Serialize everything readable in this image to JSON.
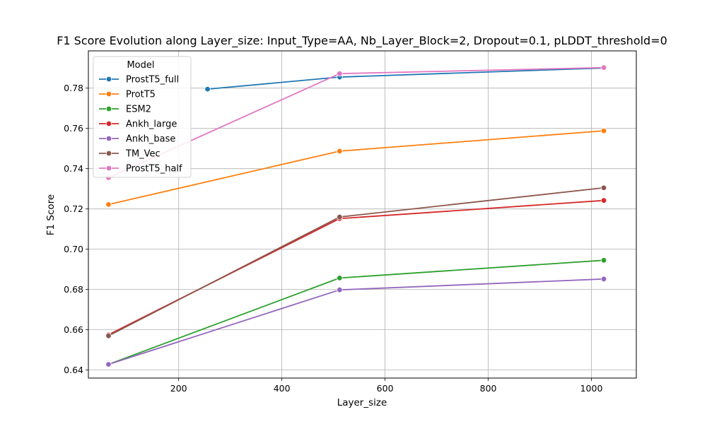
{
  "chart_data": {
    "type": "line",
    "title": "F1 Score Evolution along Layer_size: Input_Type=AA, Nb_Layer_Block=2, Dropout=0.1, pLDDT_threshold=0",
    "xlabel": "Layer_size",
    "ylabel": "F1 Score",
    "xlim": [
      25,
      1087
    ],
    "ylim": [
      0.636,
      0.7985
    ],
    "xticks": [
      200,
      400,
      600,
      800,
      1000
    ],
    "yticks": [
      0.64,
      0.66,
      0.68,
      0.7,
      0.72,
      0.74,
      0.76,
      0.78
    ],
    "ytick_labels": [
      "0.64",
      "0.66",
      "0.68",
      "0.70",
      "0.72",
      "0.74",
      "0.76",
      "0.78"
    ],
    "grid": true,
    "legend": {
      "title": "Model",
      "position": "top-left"
    },
    "series": [
      {
        "name": "ProstT5_full",
        "color": "#1f77b4",
        "x": [
          256,
          512,
          1024
        ],
        "values": [
          0.7795,
          0.7855,
          0.79
        ]
      },
      {
        "name": "ProtT5",
        "color": "#ff7f0e",
        "x": [
          64,
          512,
          1024
        ],
        "values": [
          0.7222,
          0.7487,
          0.7588
        ]
      },
      {
        "name": "ESM2",
        "color": "#2ca02c",
        "x": [
          64,
          512,
          1024
        ],
        "values": [
          0.6428,
          0.6857,
          0.6945
        ]
      },
      {
        "name": "Ankh_large",
        "color": "#d62728",
        "x": [
          64,
          512,
          1024
        ],
        "values": [
          0.6575,
          0.7152,
          0.7242
        ]
      },
      {
        "name": "Ankh_base",
        "color": "#9467bd",
        "x": [
          64,
          512,
          1024
        ],
        "values": [
          0.6428,
          0.6798,
          0.6852
        ]
      },
      {
        "name": "TM_Vec",
        "color": "#8c564b",
        "x": [
          64,
          512,
          1024
        ],
        "values": [
          0.657,
          0.716,
          0.7305
        ]
      },
      {
        "name": "ProstT5_half",
        "color": "#e377c2",
        "x": [
          64,
          512,
          1024
        ],
        "values": [
          0.7355,
          0.7872,
          0.7902
        ]
      }
    ]
  }
}
